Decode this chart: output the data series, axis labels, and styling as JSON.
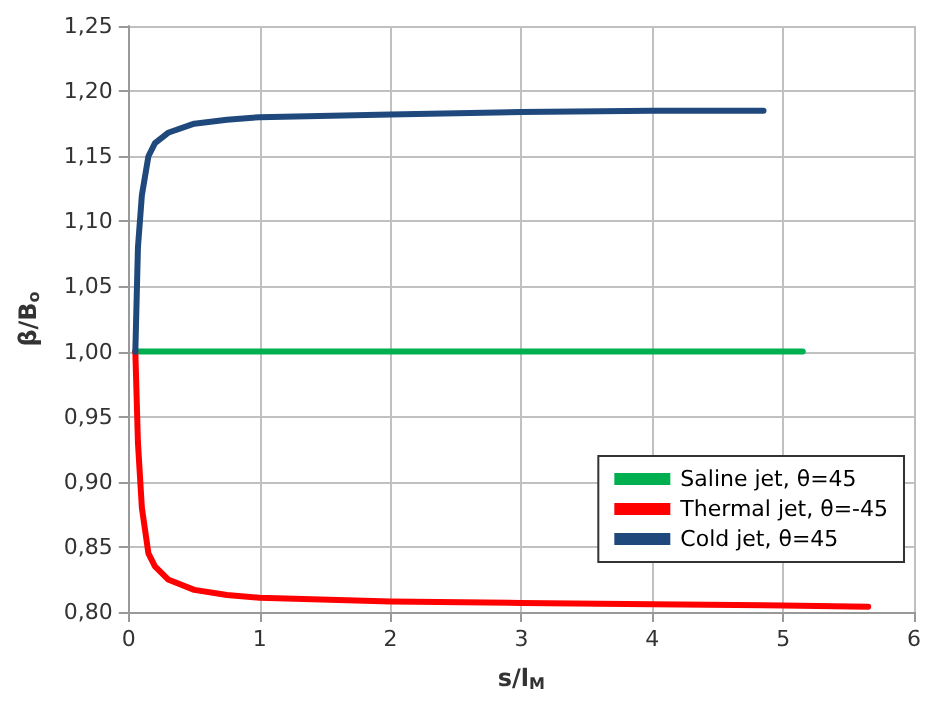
{
  "chart_data": {
    "type": "line",
    "xlabel": "s/l$_{M}$",
    "ylabel": "β/B$_{o}$",
    "xlim": [
      0,
      6
    ],
    "xticks": [
      0,
      1,
      2,
      3,
      4,
      5,
      6
    ],
    "ylim": [
      0.8,
      1.25
    ],
    "yticks": [
      {
        "value": 0.8,
        "label": "0,80"
      },
      {
        "value": 0.85,
        "label": "0,85"
      },
      {
        "value": 0.9,
        "label": "0,90"
      },
      {
        "value": 0.95,
        "label": "0,95"
      },
      {
        "value": 1.0,
        "label": "1,00"
      },
      {
        "value": 1.05,
        "label": "1,05"
      },
      {
        "value": 1.1,
        "label": "1,10"
      },
      {
        "value": 1.15,
        "label": "1,15"
      },
      {
        "value": 1.2,
        "label": "1,20"
      },
      {
        "value": 1.25,
        "label": "1,25"
      }
    ],
    "grid": true,
    "legend": "bottom right",
    "marker": "none",
    "line_style": "solid",
    "series": [
      {
        "name": "Saline jet, θ=45",
        "color": "#00b050",
        "x": [
          0.05,
          5.15
        ],
        "values": [
          1.0,
          1.0
        ]
      },
      {
        "name": "Thermal jet, θ=-45",
        "color": "#ff0000",
        "x": [
          0.05,
          0.07,
          0.1,
          0.15,
          0.2,
          0.3,
          0.5,
          0.75,
          1,
          2,
          3,
          4,
          5,
          5.65
        ],
        "values": [
          1.0,
          0.93,
          0.88,
          0.845,
          0.835,
          0.825,
          0.817,
          0.813,
          0.811,
          0.808,
          0.807,
          0.806,
          0.805,
          0.804
        ]
      },
      {
        "name": "Cold jet, θ=45",
        "color": "#1f497d",
        "x": [
          0.05,
          0.07,
          0.1,
          0.15,
          0.2,
          0.3,
          0.5,
          0.75,
          1,
          2,
          3,
          4,
          4.85
        ],
        "values": [
          1.0,
          1.08,
          1.12,
          1.15,
          1.16,
          1.168,
          1.175,
          1.178,
          1.18,
          1.182,
          1.184,
          1.185,
          1.185
        ]
      }
    ]
  }
}
